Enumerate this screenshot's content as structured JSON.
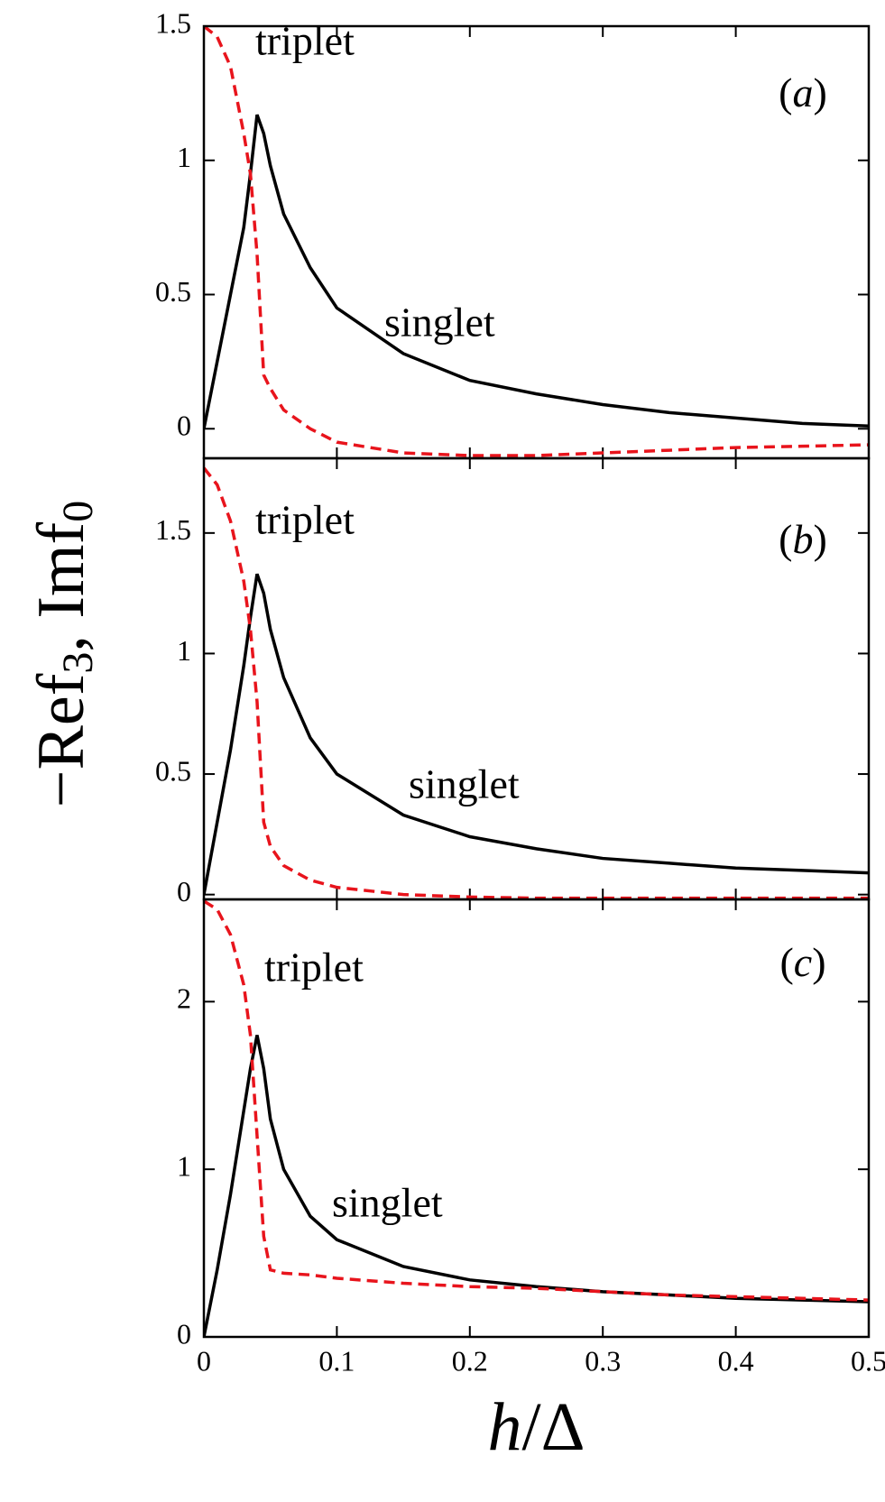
{
  "chart_data": [
    {
      "type": "line",
      "panel_label": [
        "(",
        "a",
        ")"
      ],
      "xlim": [
        0,
        0.5
      ],
      "xticks": [
        0,
        0.1,
        0.2,
        0.3,
        0.4,
        0.5
      ],
      "ylim": [
        -0.11,
        1.5
      ],
      "yticks": [
        0,
        0.5,
        1,
        1.5
      ],
      "x": [
        0,
        0.01,
        0.02,
        0.03,
        0.035,
        0.04,
        0.045,
        0.05,
        0.06,
        0.08,
        0.1,
        0.15,
        0.2,
        0.25,
        0.3,
        0.35,
        0.4,
        0.45,
        0.5
      ],
      "series": [
        {
          "name": "singlet",
          "color": "#000000",
          "linestyle": "solid",
          "values": [
            0,
            0.25,
            0.5,
            0.75,
            0.95,
            1.17,
            1.1,
            0.98,
            0.8,
            0.6,
            0.45,
            0.28,
            0.18,
            0.13,
            0.09,
            0.06,
            0.04,
            0.02,
            0.01
          ]
        },
        {
          "name": "triplet",
          "color": "#e8141c",
          "linestyle": "dashed",
          "values": [
            1.5,
            1.46,
            1.35,
            1.1,
            0.95,
            0.65,
            0.2,
            0.15,
            0.07,
            0.0,
            -0.05,
            -0.09,
            -0.1,
            -0.1,
            -0.09,
            -0.08,
            -0.07,
            -0.065,
            -0.06
          ]
        }
      ]
    },
    {
      "type": "line",
      "panel_label": [
        "(",
        "b",
        ")"
      ],
      "xlim": [
        0,
        0.5
      ],
      "xticks": [
        0,
        0.1,
        0.2,
        0.3,
        0.4,
        0.5
      ],
      "ylim": [
        -0.02,
        1.81
      ],
      "yticks": [
        0,
        0.5,
        1,
        1.5
      ],
      "x": [
        0,
        0.01,
        0.02,
        0.03,
        0.035,
        0.04,
        0.045,
        0.05,
        0.06,
        0.08,
        0.1,
        0.15,
        0.2,
        0.25,
        0.3,
        0.35,
        0.4,
        0.45,
        0.5
      ],
      "series": [
        {
          "name": "singlet",
          "color": "#000000",
          "linestyle": "solid",
          "values": [
            0,
            0.3,
            0.6,
            0.95,
            1.15,
            1.33,
            1.25,
            1.1,
            0.9,
            0.65,
            0.5,
            0.33,
            0.24,
            0.19,
            0.15,
            0.13,
            0.11,
            0.1,
            0.09
          ]
        },
        {
          "name": "triplet",
          "color": "#e8141c",
          "linestyle": "dashed",
          "values": [
            1.77,
            1.7,
            1.55,
            1.3,
            1.1,
            0.8,
            0.3,
            0.2,
            0.12,
            0.06,
            0.03,
            0.0,
            -0.01,
            -0.015,
            -0.015,
            -0.015,
            -0.015,
            -0.015,
            -0.015
          ]
        }
      ]
    },
    {
      "type": "line",
      "panel_label": [
        "(",
        "c",
        ")"
      ],
      "xlim": [
        0,
        0.5
      ],
      "xticks": [
        0,
        0.1,
        0.2,
        0.3,
        0.4,
        0.5
      ],
      "ylim": [
        0,
        2.61
      ],
      "yticks": [
        0,
        1,
        2
      ],
      "x": [
        0,
        0.01,
        0.02,
        0.03,
        0.035,
        0.04,
        0.045,
        0.05,
        0.06,
        0.08,
        0.1,
        0.15,
        0.2,
        0.25,
        0.3,
        0.35,
        0.4,
        0.45,
        0.5
      ],
      "series": [
        {
          "name": "singlet",
          "color": "#000000",
          "linestyle": "solid",
          "values": [
            0,
            0.4,
            0.85,
            1.35,
            1.6,
            1.8,
            1.6,
            1.3,
            1.0,
            0.72,
            0.58,
            0.42,
            0.34,
            0.3,
            0.27,
            0.25,
            0.23,
            0.22,
            0.21
          ]
        },
        {
          "name": "triplet",
          "color": "#e8141c",
          "linestyle": "dashed",
          "values": [
            2.6,
            2.55,
            2.4,
            2.1,
            1.8,
            1.2,
            0.6,
            0.4,
            0.38,
            0.37,
            0.35,
            0.32,
            0.3,
            0.29,
            0.27,
            0.25,
            0.24,
            0.23,
            0.22
          ]
        }
      ],
      "xlabel": [
        "h",
        "/Δ"
      ],
      "ylabel": [
        "−Ref",
        "3",
        ",  Imf",
        "0"
      ]
    }
  ]
}
